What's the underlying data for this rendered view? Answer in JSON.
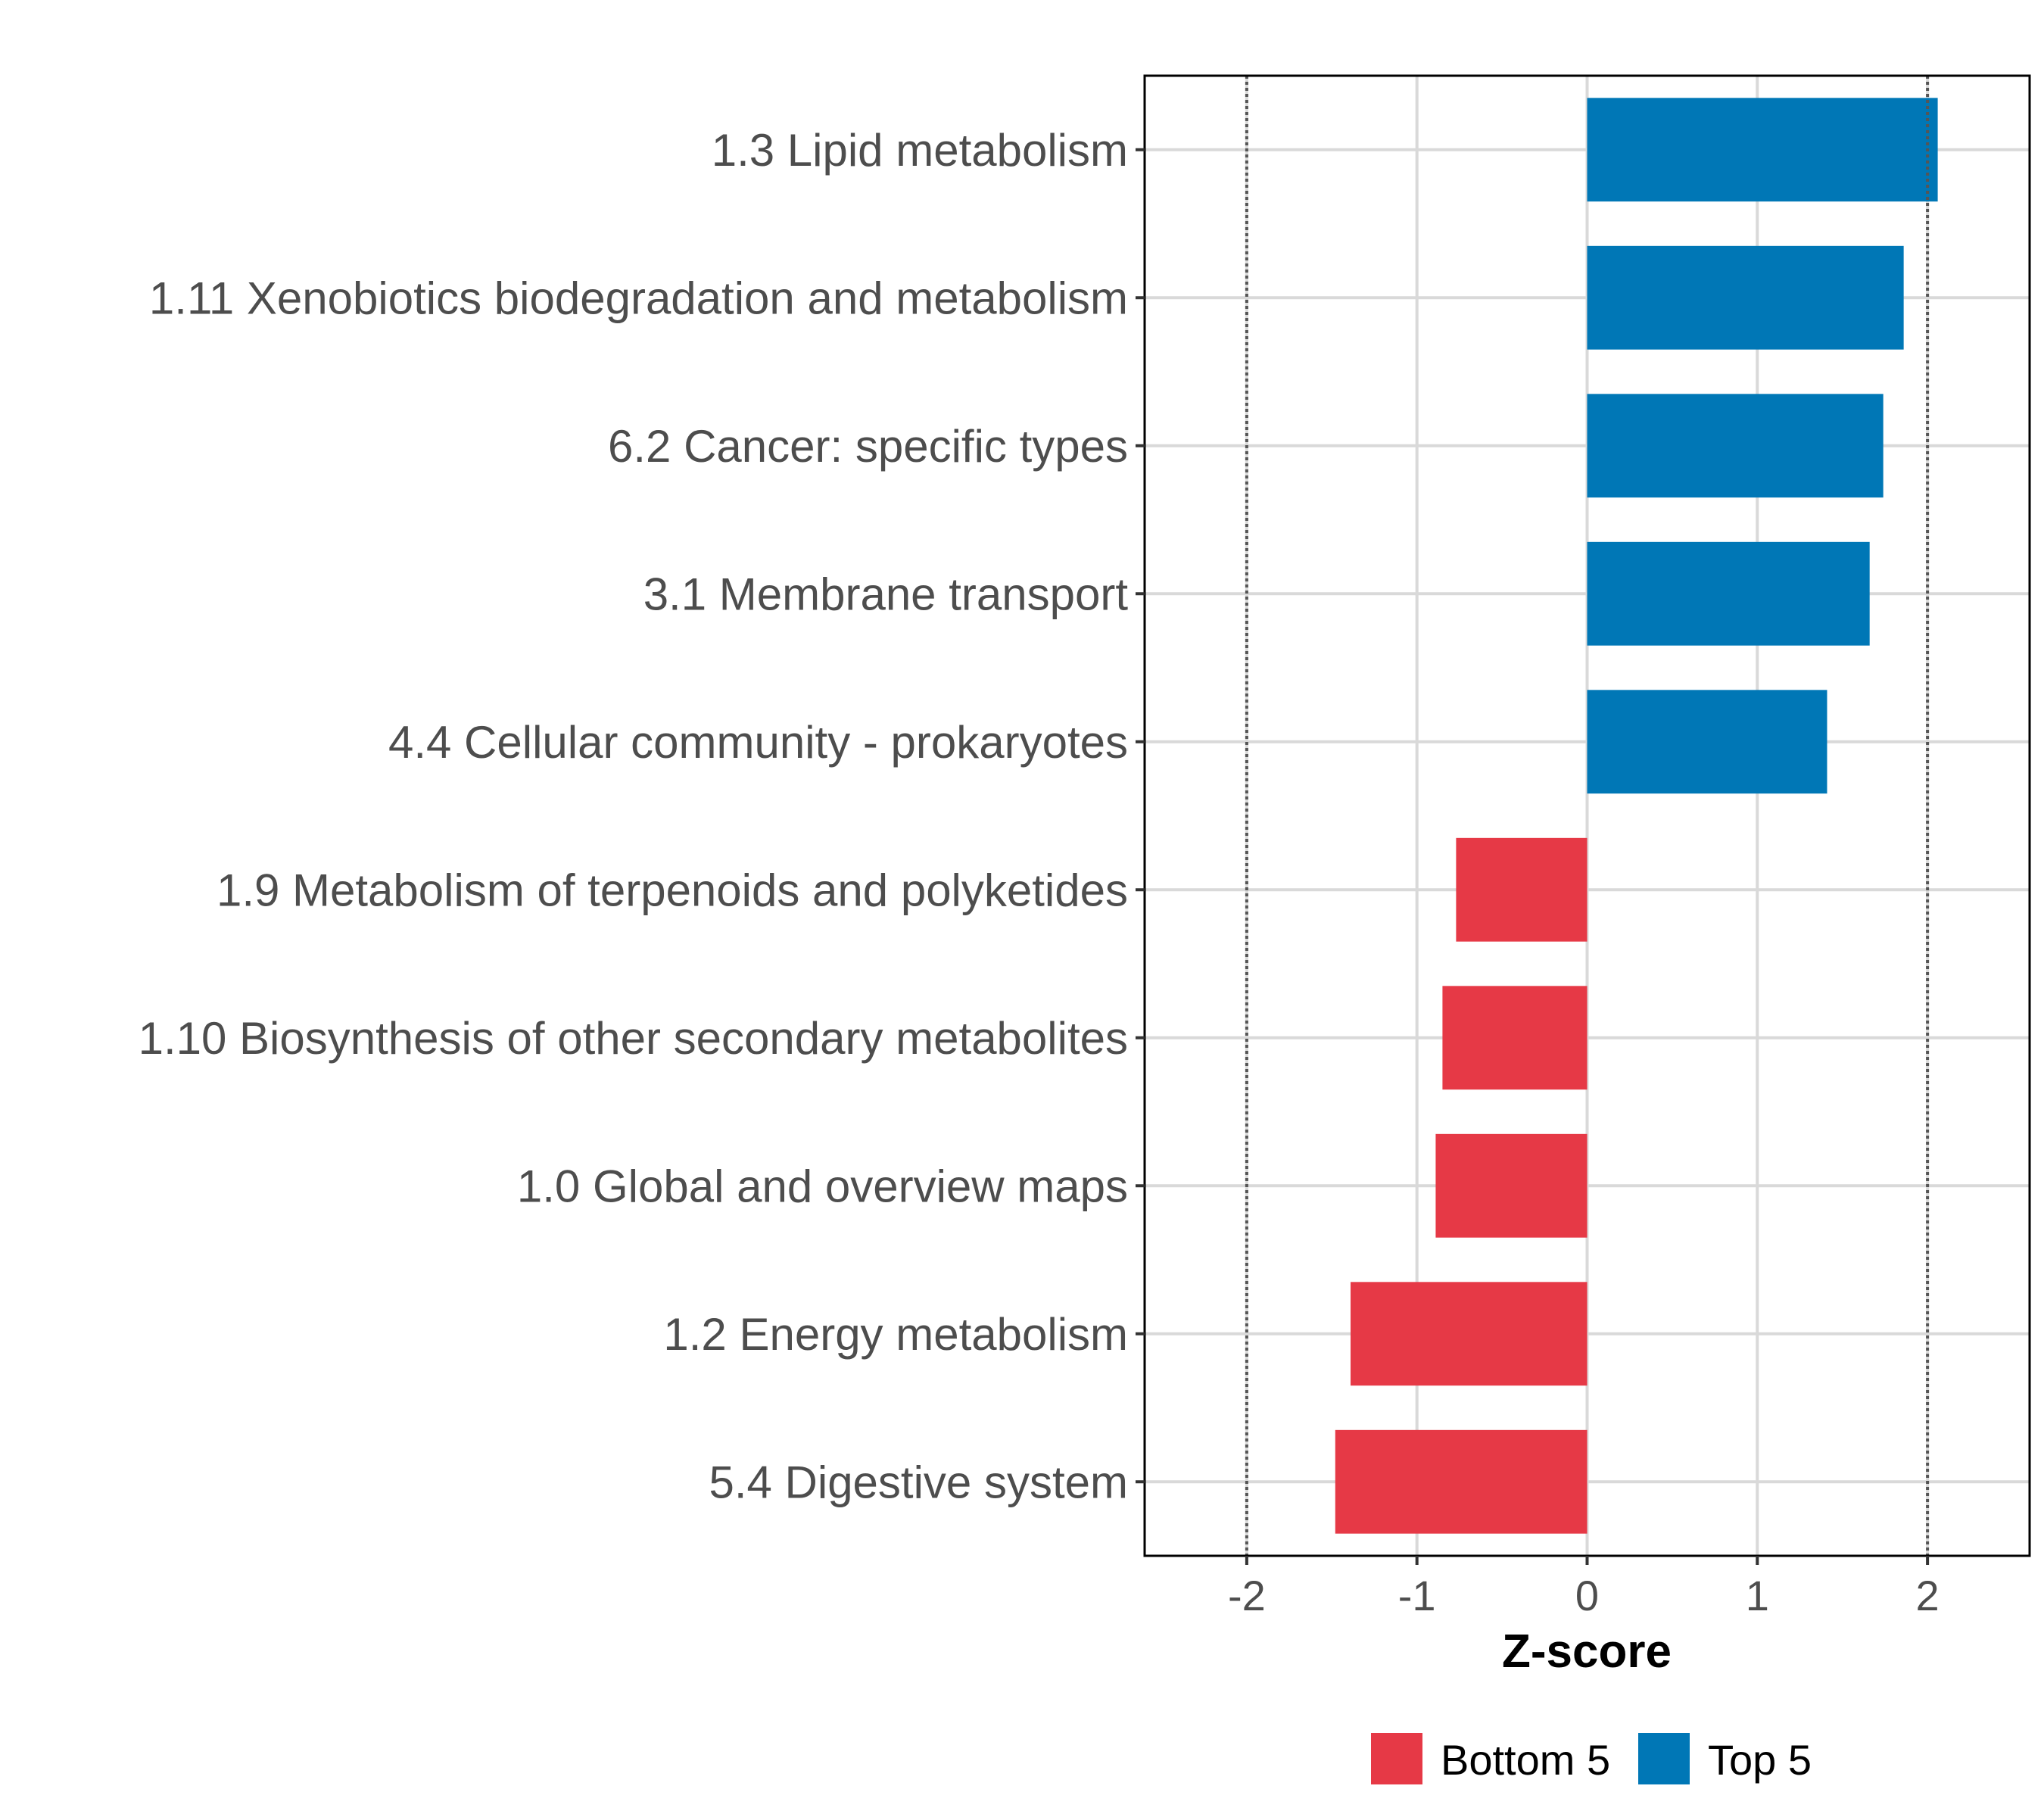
{
  "chart_data": {
    "type": "bar",
    "orientation": "horizontal",
    "title": "",
    "xlabel": "Z-score",
    "ylabel": "",
    "xlim": [
      -2.6,
      2.6
    ],
    "x_ticks": [
      -2,
      -1,
      0,
      1,
      2
    ],
    "x_tick_labels": [
      "-2",
      "-1",
      "0",
      "1",
      "2"
    ],
    "reference_lines": [
      -2,
      2
    ],
    "grid": true,
    "legend_position": "bottom",
    "categories": [
      "1.3 Lipid metabolism",
      "1.11 Xenobiotics biodegradation and metabolism",
      "6.2 Cancer: specific types",
      "3.1 Membrane transport",
      "4.4 Cellular community - prokaryotes",
      "1.9 Metabolism of terpenoids and polyketides",
      "1.10 Biosynthesis of other secondary metabolites",
      "1.0 Global and overview maps",
      "1.2 Energy metabolism",
      "5.4 Digestive system"
    ],
    "values": [
      2.06,
      1.86,
      1.74,
      1.66,
      1.41,
      -0.77,
      -0.85,
      -0.89,
      -1.39,
      -1.48
    ],
    "groups": [
      "Top 5",
      "Top 5",
      "Top 5",
      "Top 5",
      "Top 5",
      "Bottom 5",
      "Bottom 5",
      "Bottom 5",
      "Bottom 5",
      "Bottom 5"
    ],
    "legend": [
      {
        "label": "Bottom 5",
        "color": "#e63946"
      },
      {
        "label": "Top 5",
        "color": "#0077b6"
      }
    ]
  }
}
